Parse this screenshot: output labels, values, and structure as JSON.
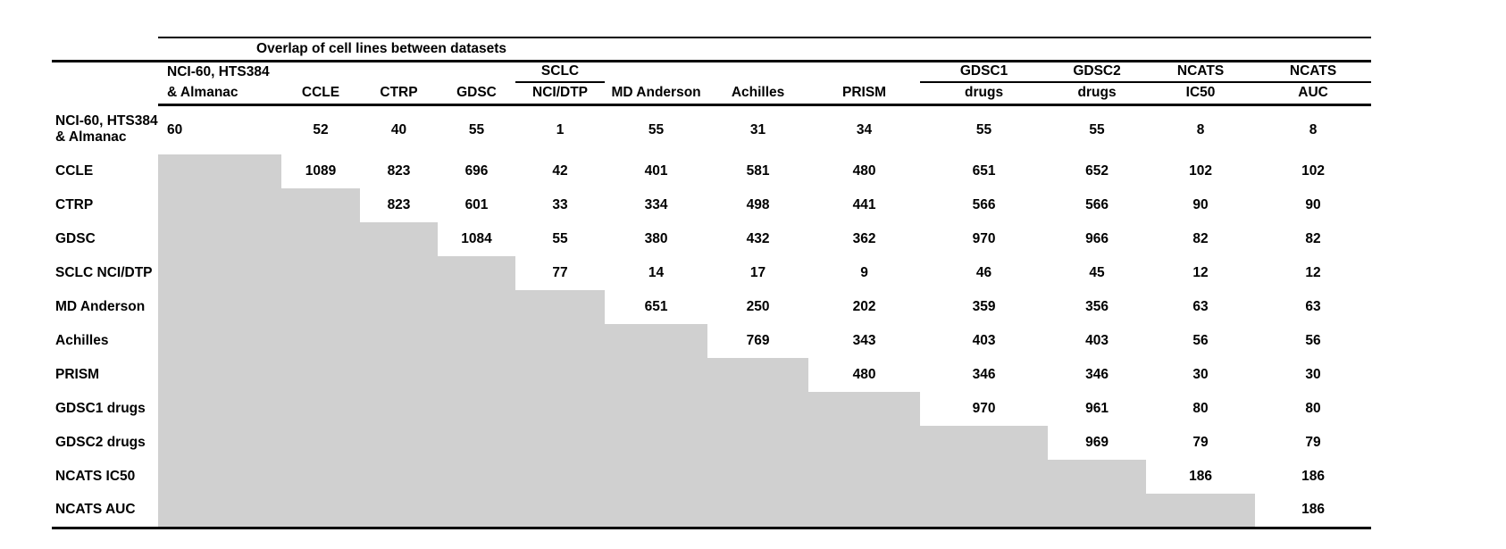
{
  "title": "Overlap of cell lines between datasets",
  "colors": {
    "shaded_cell": "#d0d0d0",
    "rule": "#000000",
    "text": "#000000",
    "background": "#ffffff"
  },
  "columns": [
    {
      "id": "nci60",
      "line1": "NCI-60, HTS384",
      "line2": "& Almanac",
      "underline": false
    },
    {
      "id": "ccle",
      "line1": "",
      "line2": "CCLE",
      "underline": false
    },
    {
      "id": "ctrp",
      "line1": "",
      "line2": "CTRP",
      "underline": false
    },
    {
      "id": "gdsc",
      "line1": "",
      "line2": "GDSC",
      "underline": false
    },
    {
      "id": "sclc",
      "line1": "SCLC",
      "line2": "NCI/DTP",
      "underline": true
    },
    {
      "id": "mdanderson",
      "line1": "",
      "line2": "MD Anderson",
      "underline": false
    },
    {
      "id": "achilles",
      "line1": "",
      "line2": "Achilles",
      "underline": false
    },
    {
      "id": "prism",
      "line1": "",
      "line2": "PRISM",
      "underline": false
    },
    {
      "id": "gdsc1",
      "line1": "GDSC1",
      "line2": "drugs",
      "underline": true
    },
    {
      "id": "gdsc2",
      "line1": "GDSC2",
      "line2": "drugs",
      "underline": true
    },
    {
      "id": "ncats_ic50",
      "line1": "NCATS",
      "line2": "IC50",
      "underline": true
    },
    {
      "id": "ncats_auc",
      "line1": "NCATS",
      "line2": "AUC",
      "underline": true
    }
  ],
  "rows": [
    {
      "id": "nci60",
      "label": "NCI-60, HTS384",
      "label2": "& Almanac",
      "values": [
        60,
        52,
        40,
        55,
        1,
        55,
        31,
        34,
        55,
        55,
        8,
        8
      ]
    },
    {
      "id": "ccle",
      "label": "CCLE",
      "label2": "",
      "values": [
        null,
        1089,
        823,
        696,
        42,
        401,
        581,
        480,
        651,
        652,
        102,
        102
      ]
    },
    {
      "id": "ctrp",
      "label": "CTRP",
      "label2": "",
      "values": [
        null,
        null,
        823,
        601,
        33,
        334,
        498,
        441,
        566,
        566,
        90,
        90
      ]
    },
    {
      "id": "gdsc",
      "label": "GDSC",
      "label2": "",
      "values": [
        null,
        null,
        null,
        1084,
        55,
        380,
        432,
        362,
        970,
        966,
        82,
        82
      ]
    },
    {
      "id": "sclc",
      "label": "SCLC NCI/DTP",
      "label2": "",
      "values": [
        null,
        null,
        null,
        null,
        77,
        14,
        17,
        9,
        46,
        45,
        12,
        12
      ]
    },
    {
      "id": "mdanderson",
      "label": "MD Anderson",
      "label2": "",
      "values": [
        null,
        null,
        null,
        null,
        null,
        651,
        250,
        202,
        359,
        356,
        63,
        63
      ]
    },
    {
      "id": "achilles",
      "label": "Achilles",
      "label2": "",
      "values": [
        null,
        null,
        null,
        null,
        null,
        null,
        769,
        343,
        403,
        403,
        56,
        56
      ]
    },
    {
      "id": "prism",
      "label": "PRISM",
      "label2": "",
      "values": [
        null,
        null,
        null,
        null,
        null,
        null,
        null,
        480,
        346,
        346,
        30,
        30
      ]
    },
    {
      "id": "gdsc1",
      "label": "GDSC1 drugs",
      "label2": "",
      "values": [
        null,
        null,
        null,
        null,
        null,
        null,
        null,
        null,
        970,
        961,
        80,
        80
      ]
    },
    {
      "id": "gdsc2",
      "label": "GDSC2 drugs",
      "label2": "",
      "values": [
        null,
        null,
        null,
        null,
        null,
        null,
        null,
        null,
        null,
        969,
        79,
        79
      ]
    },
    {
      "id": "ncats_ic50",
      "label": "NCATS IC50",
      "label2": "",
      "values": [
        null,
        null,
        null,
        null,
        null,
        null,
        null,
        null,
        null,
        null,
        186,
        186
      ]
    },
    {
      "id": "ncats_auc",
      "label": "NCATS AUC",
      "label2": "",
      "values": [
        null,
        null,
        null,
        null,
        null,
        null,
        null,
        null,
        null,
        null,
        null,
        186
      ]
    }
  ]
}
